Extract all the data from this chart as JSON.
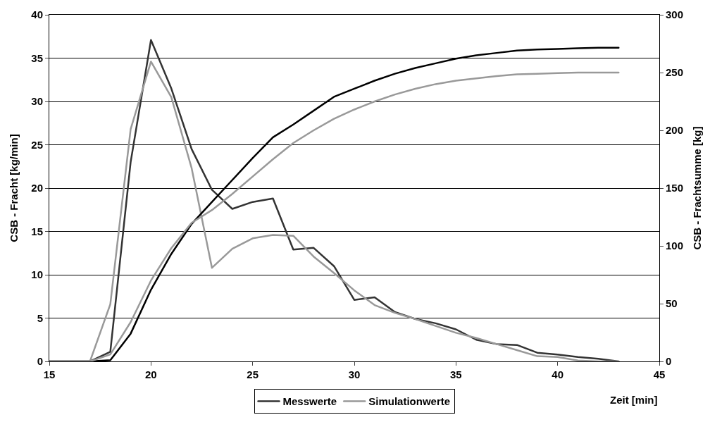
{
  "chart_data": {
    "type": "line",
    "xlabel": "Zeit [min]",
    "ylabel": "CSB - Fracht [kg/min]",
    "y2label": "CSB - Frachtsumme [kg]",
    "x": [
      15,
      16,
      17,
      18,
      19,
      20,
      21,
      22,
      23,
      24,
      25,
      26,
      27,
      28,
      29,
      30,
      31,
      32,
      33,
      34,
      35,
      36,
      37,
      38,
      39,
      40,
      41,
      42,
      43
    ],
    "series": [
      {
        "name": "Messwerte",
        "color": "#333333",
        "values": [
          0,
          0,
          0,
          1.1,
          23,
          37.1,
          31.5,
          24.5,
          19.8,
          17.6,
          18.4,
          18.8,
          12.9,
          13.1,
          11,
          7.1,
          7.4,
          5.7,
          4.9,
          4.4,
          3.7,
          2.5,
          2,
          1.9,
          1,
          0.8,
          0.5,
          0.3,
          0
        ]
      },
      {
        "name": "Simulationwerte",
        "color": "#999999",
        "values": [
          0,
          0,
          0,
          6.6,
          26.8,
          34.6,
          30.5,
          22.3,
          10.8,
          13,
          14.2,
          14.6,
          14.5,
          12.1,
          10.2,
          8.2,
          6.5,
          5.6,
          4.9,
          4.1,
          3.3,
          2.7,
          2,
          1.3,
          0.6,
          0.5,
          0.1,
          0,
          0
        ]
      },
      {
        "color": "#000000",
        "axis": "y2",
        "values": [
          0,
          0,
          0,
          1,
          24,
          62,
          93,
          119,
          138,
          157,
          176,
          194,
          205,
          217,
          229,
          236,
          243,
          249,
          254,
          258,
          262,
          265,
          267,
          269,
          270,
          270.5,
          271,
          271.5,
          271.5
        ]
      },
      {
        "color": "#999999",
        "axis": "y2",
        "values": [
          0,
          0,
          0,
          6,
          34,
          70,
          98,
          120,
          131,
          145,
          160,
          175,
          189,
          200,
          210,
          218,
          225,
          231,
          236,
          240,
          243,
          245,
          247,
          248.5,
          249,
          249.5,
          250,
          250,
          250
        ]
      }
    ],
    "xlim": [
      15,
      45
    ],
    "xticks": [
      15,
      20,
      25,
      30,
      35,
      40,
      45
    ],
    "ylim": [
      0,
      40
    ],
    "yticks": [
      0,
      5,
      10,
      15,
      20,
      25,
      30,
      35,
      40
    ],
    "y2lim": [
      0,
      300
    ],
    "y2ticks": [
      0,
      50,
      100,
      150,
      200,
      250,
      300
    ],
    "grid": "y",
    "legend": "bottom",
    "marker": "none",
    "line_style": "solid"
  }
}
